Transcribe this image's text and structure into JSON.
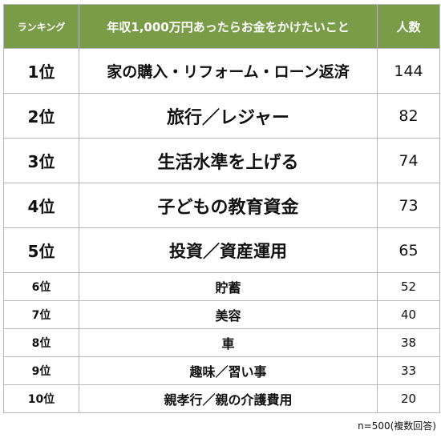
{
  "table": {
    "headers": [
      "ランキング",
      "年収1,000万円あったらお金をかけたいこと",
      "人数"
    ],
    "rows": [
      {
        "rank": "1位",
        "item": "家の購入・リフォーム・ローン返済",
        "count": "144"
      },
      {
        "rank": "2位",
        "item": "旅行／レジャー",
        "count": "82"
      },
      {
        "rank": "3位",
        "item": "生活水準を上げる",
        "count": "74"
      },
      {
        "rank": "4位",
        "item": "子どもの教育資金",
        "count": "73"
      },
      {
        "rank": "5位",
        "item": "投資／資産運用",
        "count": "65"
      },
      {
        "rank": "6位",
        "item": "貯蓄",
        "count": "52"
      },
      {
        "rank": "7位",
        "item": "美容",
        "count": "40"
      },
      {
        "rank": "8位",
        "item": "車",
        "count": "38"
      },
      {
        "rank": "9位",
        "item": "趣味／習い事",
        "count": "33"
      },
      {
        "rank": "10位",
        "item": "親孝行／親の介護費用",
        "count": "20"
      }
    ]
  },
  "note": "n=500(複数回答)",
  "colors": {
    "header_bg": "#7a9c48",
    "header_text": "#ffffff",
    "border": "#b8b8b8"
  }
}
